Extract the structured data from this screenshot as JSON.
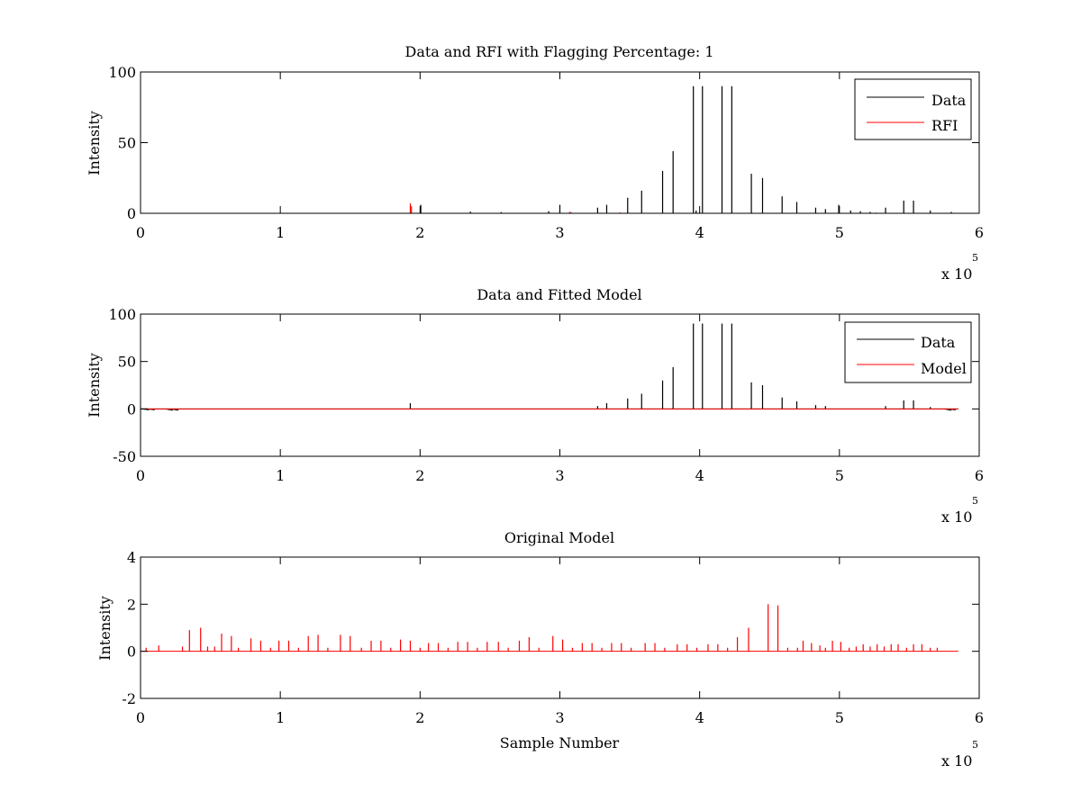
{
  "figure": {
    "background": "#ffffff"
  },
  "colors": {
    "data": "#000000",
    "red": "#ff0000",
    "axes": "#000000"
  },
  "chart_data": [
    {
      "type": "line",
      "title": "Data and RFI with Flagging Percentage: 1",
      "xlabel": "",
      "ylabel": "Intensity",
      "xlim": [
        0,
        600000
      ],
      "ylim": [
        0,
        100
      ],
      "x_ticks": [
        0,
        100000,
        200000,
        300000,
        400000,
        500000,
        600000
      ],
      "x_tick_labels": [
        "0",
        "1",
        "2",
        "3",
        "4",
        "5",
        "6"
      ],
      "y_ticks": [
        0,
        50,
        100
      ],
      "y_tick_labels": [
        "0",
        "50",
        "100"
      ],
      "x_exponent_label": "x 10",
      "x_exponent": "5",
      "legend": {
        "location": "top-right",
        "entries": [
          "Data",
          "RFI"
        ]
      },
      "series": [
        {
          "name": "Data",
          "color": "#000000",
          "baseline": 0,
          "x_max": 585000,
          "spikes": [
            [
              200500,
              6
            ],
            [
              236000,
              1.2
            ],
            [
              258000,
              0.8
            ],
            [
              292000,
              1.5
            ],
            [
              300000,
              6
            ],
            [
              327000,
              4
            ],
            [
              333500,
              6
            ],
            [
              348500,
              11
            ],
            [
              358500,
              16
            ],
            [
              373500,
              30
            ],
            [
              381000,
              44
            ],
            [
              395500,
              90
            ],
            [
              397500,
              2
            ],
            [
              402000,
              90
            ],
            [
              416000,
              90
            ],
            [
              423000,
              90
            ],
            [
              437000,
              28
            ],
            [
              445000,
              25
            ],
            [
              459000,
              12
            ],
            [
              469500,
              8
            ],
            [
              483000,
              4
            ],
            [
              490000,
              3
            ],
            [
              499500,
              6
            ],
            [
              508000,
              2
            ],
            [
              515000,
              1.5
            ],
            [
              522000,
              1
            ],
            [
              533000,
              4
            ],
            [
              546000,
              9
            ],
            [
              553000,
              9
            ],
            [
              565000,
              2
            ],
            [
              580000,
              1
            ]
          ]
        },
        {
          "name": "RFI",
          "color": "#ff0000",
          "baseline": 0,
          "x_max": 585000,
          "spikes": [
            [
              193000,
              7
            ],
            [
              193800,
              5
            ],
            [
              307000,
              1
            ],
            [
              308000,
              0.8
            ],
            [
              343000,
              0.6
            ],
            [
              400000,
              0.6
            ],
            [
              526000,
              0.5
            ]
          ]
        }
      ]
    },
    {
      "type": "line",
      "title": "Data and Fitted Model",
      "xlabel": "",
      "ylabel": "Intensity",
      "xlim": [
        0,
        600000
      ],
      "ylim": [
        -50,
        100
      ],
      "x_ticks": [
        0,
        100000,
        200000,
        300000,
        400000,
        500000,
        600000
      ],
      "x_tick_labels": [
        "0",
        "1",
        "2",
        "3",
        "4",
        "5",
        "6"
      ],
      "y_ticks": [
        -50,
        0,
        50,
        100
      ],
      "y_tick_labels": [
        "-50",
        "0",
        "50",
        "100"
      ],
      "x_exponent_label": "x 10",
      "x_exponent": "5",
      "legend": {
        "location": "top-right",
        "entries": [
          "Data",
          "Model"
        ]
      },
      "series": [
        {
          "name": "Data",
          "color": "#000000",
          "baseline": 0,
          "x_max": 585000,
          "spikes": [
            [
              193000,
              6
            ],
            [
              327000,
              3
            ],
            [
              333500,
              6
            ],
            [
              348500,
              11
            ],
            [
              358500,
              16
            ],
            [
              373500,
              30
            ],
            [
              381000,
              44
            ],
            [
              395500,
              90
            ],
            [
              402000,
              90
            ],
            [
              416000,
              90
            ],
            [
              423000,
              90
            ],
            [
              437000,
              28
            ],
            [
              445000,
              25
            ],
            [
              459000,
              12
            ],
            [
              469500,
              8
            ],
            [
              483000,
              4
            ],
            [
              490000,
              3
            ],
            [
              533000,
              3
            ],
            [
              546000,
              9
            ],
            [
              553000,
              9
            ],
            [
              565000,
              2
            ]
          ],
          "dips": [
            [
              1000,
              -1
            ],
            [
              5000,
              -1
            ],
            [
              18000,
              -1.5
            ],
            [
              22000,
              -1.5
            ],
            [
              575000,
              -1.5
            ],
            [
              578000,
              -1
            ]
          ]
        },
        {
          "name": "Model",
          "color": "#ff0000",
          "baseline": 0,
          "x_max": 585000,
          "spikes": []
        }
      ]
    },
    {
      "type": "line",
      "title": "Original Model",
      "xlabel": "Sample Number",
      "ylabel": "Intensity",
      "xlim": [
        0,
        600000
      ],
      "ylim": [
        -2,
        4
      ],
      "x_ticks": [
        0,
        100000,
        200000,
        300000,
        400000,
        500000,
        600000
      ],
      "x_tick_labels": [
        "0",
        "1",
        "2",
        "3",
        "4",
        "5",
        "6"
      ],
      "y_ticks": [
        -2,
        0,
        2,
        4
      ],
      "y_tick_labels": [
        "-2",
        "0",
        "2",
        "4"
      ],
      "x_exponent_label": "x 10",
      "x_exponent": "5",
      "series": [
        {
          "color": "#ff0000",
          "baseline": 0,
          "x_max": 585000,
          "spikes": [
            [
              4000,
              0.15
            ],
            [
              13000,
              0.25
            ],
            [
              30000,
              0.2
            ],
            [
              35000,
              0.9
            ],
            [
              43000,
              1.0
            ],
            [
              48000,
              0.2
            ],
            [
              53000,
              0.2
            ],
            [
              58000,
              0.75
            ],
            [
              65000,
              0.65
            ],
            [
              70000,
              0.15
            ],
            [
              79000,
              0.55
            ],
            [
              86000,
              0.45
            ],
            [
              93000,
              0.15
            ],
            [
              99000,
              0.45
            ],
            [
              106000,
              0.45
            ],
            [
              113000,
              0.15
            ],
            [
              120000,
              0.65
            ],
            [
              127000,
              0.7
            ],
            [
              134000,
              0.15
            ],
            [
              143000,
              0.7
            ],
            [
              150000,
              0.65
            ],
            [
              158000,
              0.15
            ],
            [
              165000,
              0.45
            ],
            [
              172000,
              0.45
            ],
            [
              179000,
              0.15
            ],
            [
              186000,
              0.5
            ],
            [
              193000,
              0.45
            ],
            [
              200000,
              0.15
            ],
            [
              206000,
              0.35
            ],
            [
              213000,
              0.35
            ],
            [
              220000,
              0.15
            ],
            [
              227000,
              0.4
            ],
            [
              234000,
              0.4
            ],
            [
              241000,
              0.15
            ],
            [
              248000,
              0.4
            ],
            [
              256000,
              0.4
            ],
            [
              263000,
              0.15
            ],
            [
              271000,
              0.45
            ],
            [
              278000,
              0.6
            ],
            [
              285000,
              0.15
            ],
            [
              295000,
              0.65
            ],
            [
              302000,
              0.5
            ],
            [
              309000,
              0.15
            ],
            [
              316000,
              0.35
            ],
            [
              323000,
              0.35
            ],
            [
              330000,
              0.15
            ],
            [
              337000,
              0.35
            ],
            [
              344000,
              0.35
            ],
            [
              351000,
              0.15
            ],
            [
              361000,
              0.35
            ],
            [
              368000,
              0.35
            ],
            [
              375000,
              0.15
            ],
            [
              384000,
              0.3
            ],
            [
              391000,
              0.3
            ],
            [
              398000,
              0.15
            ],
            [
              406000,
              0.3
            ],
            [
              413000,
              0.3
            ],
            [
              420000,
              0.15
            ],
            [
              427000,
              0.6
            ],
            [
              435000,
              1.0
            ],
            [
              449000,
              2.0
            ],
            [
              456000,
              1.95
            ],
            [
              463000,
              0.15
            ],
            [
              470000,
              0.15
            ],
            [
              474000,
              0.45
            ],
            [
              480000,
              0.35
            ],
            [
              486000,
              0.25
            ],
            [
              490000,
              0.15
            ],
            [
              495000,
              0.45
            ],
            [
              501000,
              0.4
            ],
            [
              507000,
              0.15
            ],
            [
              512000,
              0.2
            ],
            [
              517000,
              0.3
            ],
            [
              522000,
              0.2
            ],
            [
              527000,
              0.3
            ],
            [
              532000,
              0.2
            ],
            [
              537000,
              0.3
            ],
            [
              542000,
              0.3
            ],
            [
              548000,
              0.15
            ],
            [
              553000,
              0.3
            ],
            [
              559000,
              0.3
            ],
            [
              565000,
              0.15
            ],
            [
              570000,
              0.15
            ]
          ]
        }
      ]
    }
  ]
}
